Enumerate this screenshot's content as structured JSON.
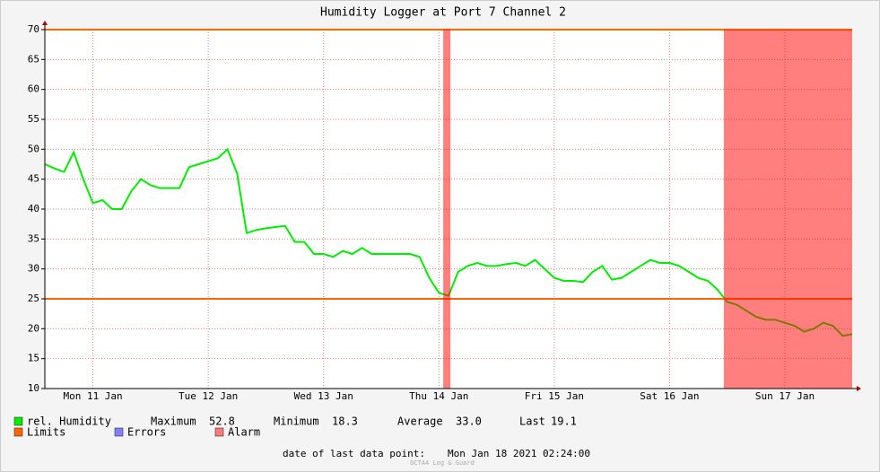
{
  "chart_data": {
    "type": "line",
    "title": "Humidity Logger at Port 7 Channel 2",
    "categories": [
      null,
      null,
      null,
      null,
      null,
      "Mon 11 Jan",
      null,
      null,
      null,
      null,
      null,
      null,
      null,
      null,
      null,
      null,
      null,
      "Tue 12 Jan",
      null,
      null,
      null,
      null,
      null,
      null,
      null,
      null,
      null,
      null,
      null,
      "Wed 13 Jan",
      null,
      null,
      null,
      null,
      null,
      null,
      null,
      null,
      null,
      null,
      null,
      "Thu 14 Jan",
      null,
      null,
      null,
      null,
      null,
      null,
      null,
      null,
      null,
      null,
      null,
      "Fri 15 Jan",
      null,
      null,
      null,
      null,
      null,
      null,
      null,
      null,
      null,
      null,
      null,
      "Sat 16 Jan",
      null,
      null,
      null,
      null,
      null,
      null,
      null,
      null,
      null,
      null,
      null,
      "Sun 17 Jan",
      null,
      null,
      null,
      null,
      null,
      null,
      null
    ],
    "series": [
      {
        "name": "rel. Humidity",
        "color": "#00ee00",
        "values": [
          47.5,
          46.8,
          46.2,
          49.5,
          45,
          41,
          41.5,
          40,
          40,
          43,
          45,
          44,
          43.5,
          43.5,
          43.5,
          47,
          47.5,
          48,
          48.5,
          50,
          46,
          36,
          36.5,
          36.8,
          37,
          37.2,
          34.5,
          34.5,
          32.5,
          32.5,
          32,
          33,
          32.5,
          33.5,
          32.5,
          32.5,
          32.5,
          32.5,
          32.5,
          32,
          28.5,
          26,
          25.5,
          29.5,
          30.5,
          31,
          30.5,
          30.5,
          30.8,
          31,
          30.5,
          31.5,
          30,
          28.5,
          28,
          28,
          27.8,
          29.5,
          30.5,
          28.2,
          28.5,
          29.5,
          30.5,
          31.5,
          31,
          31,
          30.5,
          29.5,
          28.5,
          28,
          26.5,
          24.5,
          24,
          23,
          22,
          21.5,
          21.5,
          21,
          20.5,
          19.5,
          20,
          21,
          20.5,
          18.8,
          19.1
        ]
      }
    ],
    "ylim": [
      10,
      70
    ],
    "yticks": [
      10,
      15,
      20,
      25,
      30,
      35,
      40,
      45,
      50,
      55,
      60,
      65,
      70
    ],
    "grid": true,
    "limits": {
      "name": "Limits",
      "color": "#ff6600",
      "values": [
        25,
        70
      ]
    },
    "errors": {
      "name": "Errors",
      "color": "#7f7fff"
    },
    "alarm": {
      "name": "Alarm",
      "color": "#ff0000",
      "spans": [
        [
          41.45,
          42.2
        ],
        [
          70.65,
          84
        ]
      ]
    },
    "stats": {
      "labels": [
        "Maximum",
        "Minimum",
        "Average",
        "Last"
      ],
      "values": [
        52.8,
        18.3,
        33,
        19.1
      ],
      "value_labels": [
        "52.8",
        "18.3",
        "33.0",
        "19.1"
      ]
    },
    "footer": {
      "label": "date of last data point:",
      "date": "Mon Jan 18 2021 02:24:00"
    },
    "watermark": "OCTA4 Log & Guard"
  }
}
